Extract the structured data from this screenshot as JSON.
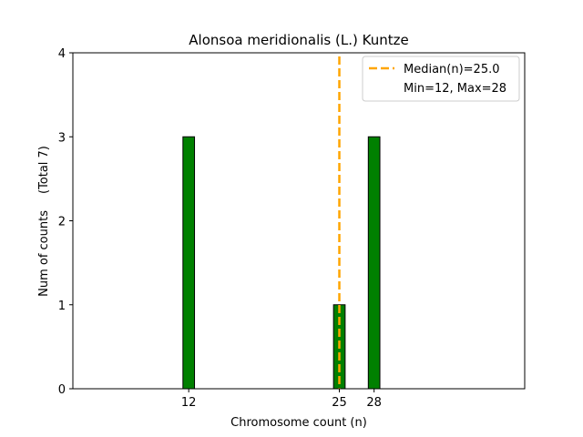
{
  "chart_data": {
    "type": "bar",
    "title": "Alonsoa meridionalis (L.) Kuntze",
    "xlabel": "Chromosome count (n)",
    "ylabel": "Num of counts",
    "ylabel_note": "(Total 7)",
    "xlim": [
      2,
      41
    ],
    "ylim": [
      0,
      4
    ],
    "yticks": [
      0,
      1,
      2,
      3,
      4
    ],
    "xticks": [
      12,
      25,
      28
    ],
    "bars": [
      {
        "x": 12,
        "value": 3
      },
      {
        "x": 25,
        "value": 1
      },
      {
        "x": 28,
        "value": 3
      }
    ],
    "bar_width": 1,
    "bar_color": "#008000",
    "bar_edge_color": "#000000",
    "median": {
      "value": 25.0,
      "label": "Median(n)=25.0",
      "color": "#FFA500",
      "style": "dashed"
    },
    "legend": {
      "placement": "top-right",
      "entries": [
        "Median(n)=25.0",
        "Min=12, Max=28"
      ]
    },
    "grid": false
  }
}
